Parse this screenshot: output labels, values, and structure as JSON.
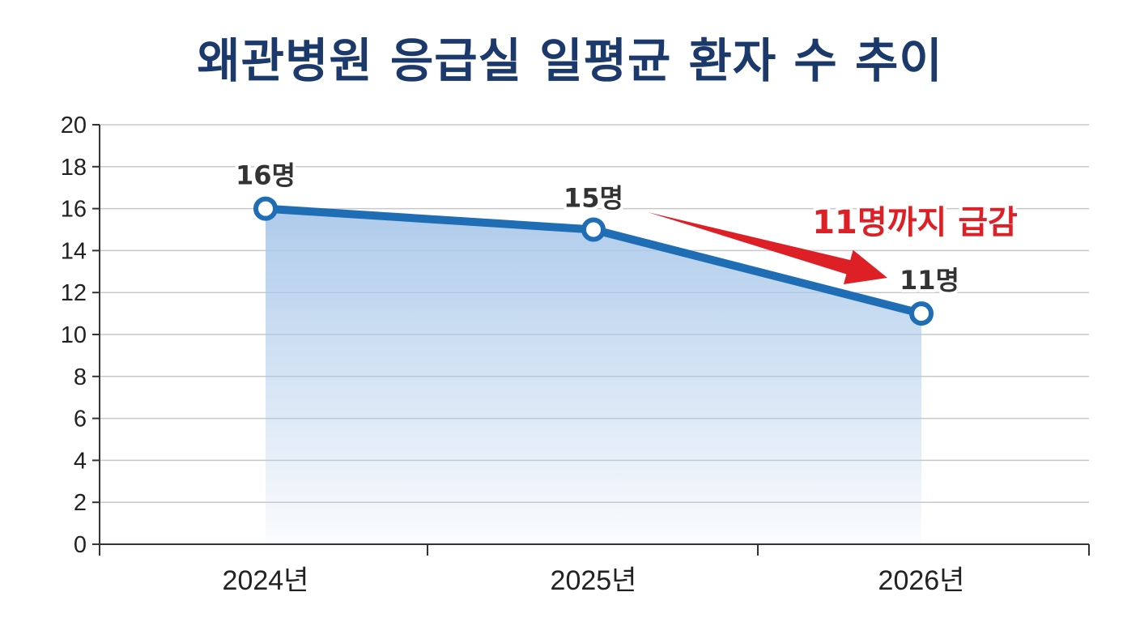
{
  "chart_data": {
    "type": "line",
    "title": "왜관병원 응급실 일평균 환자 수 추이",
    "categories": [
      "2024년",
      "2025년",
      "2026년"
    ],
    "values": [
      16,
      15,
      11
    ],
    "data_labels": [
      "16명",
      "15명",
      "11명"
    ],
    "yticks": [
      "0",
      "2",
      "4",
      "6",
      "8",
      "10",
      "12",
      "14",
      "16",
      "18",
      "20"
    ],
    "ylim": [
      0,
      20
    ],
    "xlabel": "",
    "ylabel": "",
    "grid": true,
    "annotation": {
      "text": "11명까지 급감",
      "from_category": "2025년",
      "to_category": "2026년"
    },
    "colors": {
      "line": "#1e6db5",
      "area": "#aac8ea",
      "annotation": "#dd1f26",
      "title": "#1b3a6b",
      "grid": "#c8c8c8"
    }
  }
}
